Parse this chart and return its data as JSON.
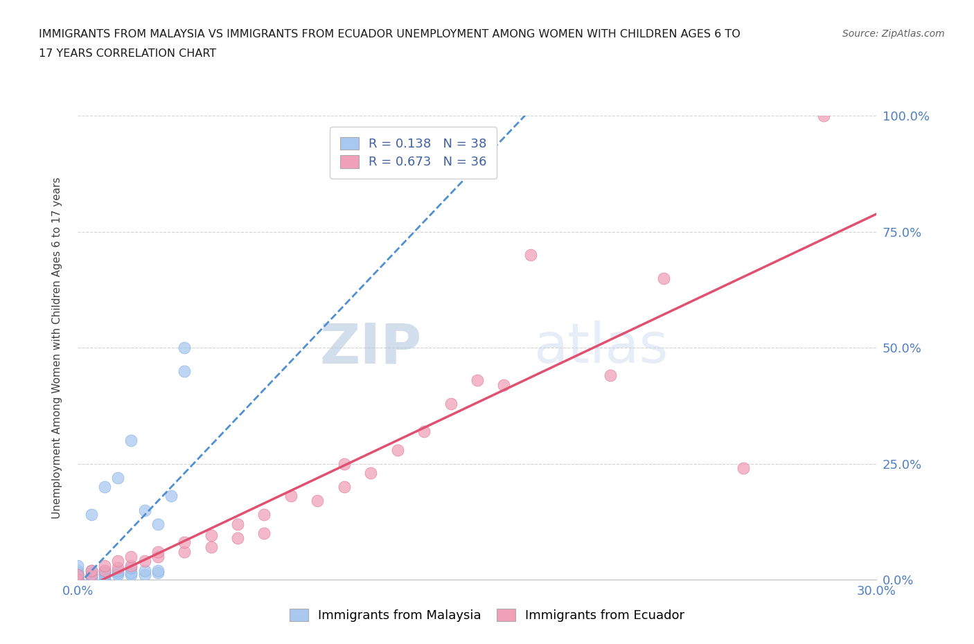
{
  "title_line1": "IMMIGRANTS FROM MALAYSIA VS IMMIGRANTS FROM ECUADOR UNEMPLOYMENT AMONG WOMEN WITH CHILDREN AGES 6 TO",
  "title_line2": "17 YEARS CORRELATION CHART",
  "source": "Source: ZipAtlas.com",
  "ylabel": "Unemployment Among Women with Children Ages 6 to 17 years",
  "xlim": [
    0,
    0.3
  ],
  "ylim": [
    0,
    1.0
  ],
  "xticks": [
    0.0,
    0.05,
    0.1,
    0.15,
    0.2,
    0.25,
    0.3
  ],
  "yticks": [
    0.0,
    0.25,
    0.5,
    0.75,
    1.0
  ],
  "yticklabels": [
    "0.0%",
    "25.0%",
    "50.0%",
    "75.0%",
    "100.0%"
  ],
  "malaysia_R": 0.138,
  "malaysia_N": 38,
  "ecuador_R": 0.673,
  "ecuador_N": 36,
  "malaysia_color": "#a8c8f0",
  "malaysia_edge_color": "#7aabdf",
  "ecuador_color": "#f0a0b8",
  "ecuador_edge_color": "#e07090",
  "malaysia_line_color": "#5090d0",
  "ecuador_line_color": "#e05070",
  "tick_color": "#5080c0",
  "watermark_color": "#ccd8ee",
  "malaysia_x": [
    0.0,
    0.0,
    0.0,
    0.0,
    0.0,
    0.0,
    0.0,
    0.0,
    0.0,
    0.0,
    0.005,
    0.005,
    0.005,
    0.005,
    0.01,
    0.01,
    0.01,
    0.01,
    0.01,
    0.015,
    0.015,
    0.015,
    0.02,
    0.02,
    0.02,
    0.025,
    0.025,
    0.03,
    0.03,
    0.035,
    0.04,
    0.005,
    0.01,
    0.015,
    0.02,
    0.025,
    0.03,
    0.04
  ],
  "malaysia_y": [
    0.0,
    0.0,
    0.0,
    0.005,
    0.005,
    0.01,
    0.01,
    0.015,
    0.02,
    0.03,
    0.0,
    0.005,
    0.01,
    0.02,
    0.0,
    0.005,
    0.01,
    0.015,
    0.02,
    0.01,
    0.015,
    0.02,
    0.01,
    0.015,
    0.025,
    0.01,
    0.02,
    0.015,
    0.02,
    0.18,
    0.45,
    0.14,
    0.2,
    0.22,
    0.3,
    0.15,
    0.12,
    0.5
  ],
  "ecuador_x": [
    0.0,
    0.0,
    0.005,
    0.005,
    0.01,
    0.01,
    0.015,
    0.015,
    0.02,
    0.02,
    0.025,
    0.03,
    0.03,
    0.04,
    0.04,
    0.05,
    0.05,
    0.06,
    0.06,
    0.07,
    0.07,
    0.08,
    0.09,
    0.1,
    0.1,
    0.11,
    0.12,
    0.13,
    0.14,
    0.15,
    0.16,
    0.17,
    0.2,
    0.22,
    0.25,
    0.28
  ],
  "ecuador_y": [
    0.0,
    0.01,
    0.01,
    0.02,
    0.02,
    0.03,
    0.025,
    0.04,
    0.03,
    0.05,
    0.04,
    0.05,
    0.06,
    0.06,
    0.08,
    0.07,
    0.095,
    0.09,
    0.12,
    0.1,
    0.14,
    0.18,
    0.17,
    0.2,
    0.25,
    0.23,
    0.28,
    0.32,
    0.38,
    0.43,
    0.42,
    0.7,
    0.44,
    0.65,
    0.24,
    1.0
  ]
}
